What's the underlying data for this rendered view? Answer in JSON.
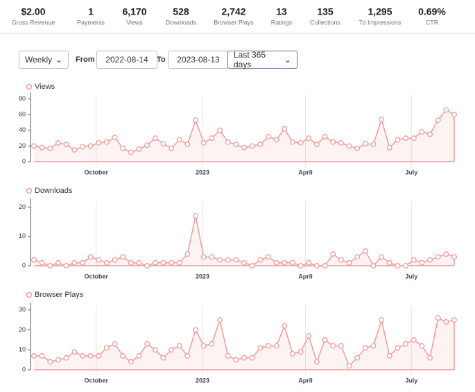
{
  "stats": [
    {
      "value": "$2.00",
      "label": "Gross Revenue"
    },
    {
      "value": "1",
      "label": "Payments"
    },
    {
      "value": "6,170",
      "label": "Views"
    },
    {
      "value": "528",
      "label": "Downloads"
    },
    {
      "value": "2,742",
      "label": "Browser Plays"
    },
    {
      "value": "13",
      "label": "Ratings"
    },
    {
      "value": "135",
      "label": "Collections"
    },
    {
      "value": "1,295",
      "label": "7d Impressions"
    },
    {
      "value": "0.69%",
      "label": "CTR"
    }
  ],
  "controls": {
    "interval": "Weekly",
    "from_label": "From",
    "from": "2022-08-14",
    "to_label": "To",
    "to": "2023-08-13",
    "range": "Last 365 days"
  },
  "chart_data": [
    {
      "type": "area",
      "title": "Views",
      "color": "#f29a9a",
      "xlim": [
        0,
        52
      ],
      "xticks": [
        {
          "value": 7.7,
          "label": "October"
        },
        {
          "value": 20.85,
          "label": "2023"
        },
        {
          "value": 33.6,
          "label": "April"
        },
        {
          "value": 46.7,
          "label": "July"
        }
      ],
      "ylim": [
        0,
        85
      ],
      "yticks": [
        0,
        20,
        40,
        60,
        80
      ],
      "grid": true,
      "values": [
        20,
        18,
        17,
        24,
        22,
        15,
        19,
        20,
        24,
        25,
        31,
        17,
        12,
        16,
        21,
        30,
        23,
        17,
        28,
        22,
        53,
        24,
        30,
        40,
        25,
        22,
        18,
        20,
        22,
        32,
        28,
        42,
        25,
        24,
        30,
        22,
        32,
        25,
        24,
        20,
        17,
        23,
        22,
        54,
        18,
        28,
        30,
        30,
        38,
        35,
        53,
        66,
        60
      ]
    },
    {
      "type": "area",
      "title": "Downloads",
      "color": "#f29a9a",
      "xlim": [
        0,
        52
      ],
      "xticks": [
        {
          "value": 7.7,
          "label": "October"
        },
        {
          "value": 20.85,
          "label": "2023"
        },
        {
          "value": 33.6,
          "label": "April"
        },
        {
          "value": 46.7,
          "label": "July"
        }
      ],
      "ylim": [
        0,
        22
      ],
      "yticks": [
        0,
        10,
        20
      ],
      "grid": true,
      "values": [
        2,
        1,
        0,
        1,
        0,
        1,
        1,
        3,
        2,
        1,
        2,
        3,
        1,
        1,
        0,
        1,
        1,
        1,
        1,
        4,
        17,
        3,
        3,
        2,
        2,
        2,
        1,
        0,
        2,
        3,
        1,
        1,
        1,
        0,
        1,
        0,
        0,
        4,
        2,
        1,
        3,
        5,
        0,
        3,
        1,
        0,
        0,
        2,
        1,
        2,
        3,
        4,
        3
      ]
    },
    {
      "type": "area",
      "title": "Browser Plays",
      "color": "#f29a9a",
      "xlim": [
        0,
        52
      ],
      "xticks": [
        {
          "value": 7.7,
          "label": "October"
        },
        {
          "value": 20.85,
          "label": "2023"
        },
        {
          "value": 33.6,
          "label": "April"
        },
        {
          "value": 46.7,
          "label": "July"
        }
      ],
      "ylim": [
        0,
        32
      ],
      "yticks": [
        0,
        10,
        20,
        30
      ],
      "grid": true,
      "values": [
        7,
        7,
        4,
        5,
        6,
        9,
        7,
        7,
        7,
        11,
        13,
        7,
        4,
        7,
        13,
        10,
        6,
        10,
        12,
        7,
        20,
        12,
        13,
        25,
        7,
        5,
        6,
        6,
        11,
        12,
        12,
        22,
        8,
        9,
        17,
        4,
        15,
        12,
        12,
        2,
        6,
        11,
        12,
        25,
        7,
        11,
        13,
        15,
        12,
        6,
        26,
        24,
        25
      ]
    }
  ]
}
